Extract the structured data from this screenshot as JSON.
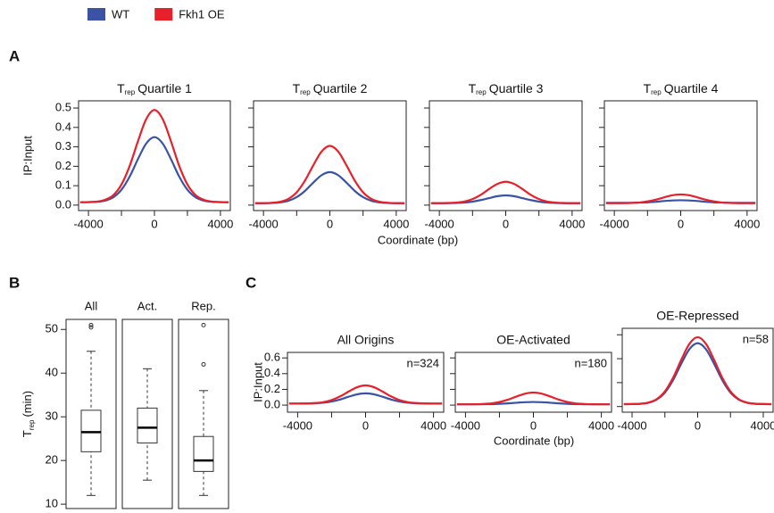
{
  "panel_labels": [
    "A",
    "B",
    "C"
  ],
  "chart_data": [
    {
      "type": "line",
      "title": "T",
      "title_sub": "rep",
      "title_rest": "Quartile 1",
      "ylabel": "IP:Input",
      "x": [
        -4500,
        -4000,
        -3500,
        -3000,
        -2500,
        -2000,
        -1500,
        -1000,
        -500,
        0,
        500,
        1000,
        1500,
        2000,
        2500,
        3000,
        3500,
        4000,
        4500
      ],
      "xlim": [
        -4600,
        4600
      ],
      "xticks": [
        -4000,
        0,
        4000
      ],
      "xminorticks": [
        -2000,
        2000
      ],
      "ylim": [
        -0.028,
        0.537
      ],
      "yticks": [
        {
          "value": 0,
          "label": "0.0"
        },
        0.1,
        0.2,
        0.3,
        0.4,
        0.5
      ],
      "series": [
        {
          "name": "WT",
          "color": "#3a53a4",
          "values": [
            0.015,
            0.015,
            0.017,
            0.023,
            0.04,
            0.079,
            0.147,
            0.237,
            0.317,
            0.35,
            0.317,
            0.237,
            0.147,
            0.079,
            0.04,
            0.023,
            0.017,
            0.015,
            0.015
          ]
        },
        {
          "name": "Fkh1 OE",
          "color": "#e8202a",
          "values": [
            0.015,
            0.016,
            0.018,
            0.027,
            0.051,
            0.106,
            0.202,
            0.329,
            0.443,
            0.49,
            0.443,
            0.329,
            0.202,
            0.106,
            0.051,
            0.027,
            0.018,
            0.016,
            0.015
          ]
        }
      ]
    },
    {
      "type": "line",
      "title": "T",
      "title_sub": "rep",
      "title_rest": "Quartile 2",
      "xlabel": "Coordinate (bp)",
      "x": [
        -4500,
        -4000,
        -3500,
        -3000,
        -2500,
        -2000,
        -1500,
        -1000,
        -500,
        0,
        500,
        1000,
        1500,
        2000,
        2500,
        3000,
        3500,
        4000,
        4500
      ],
      "xlim": [
        -4600,
        4600
      ],
      "xticks": [
        -4000,
        0,
        4000
      ],
      "xminorticks": [
        -2000,
        2000
      ],
      "ylim": [
        -0.028,
        0.537
      ],
      "yticks": [
        0,
        0.1,
        0.2,
        0.3,
        0.4,
        0.5
      ],
      "ytick_labels": false,
      "series": [
        {
          "name": "WT",
          "color": "#3a53a4",
          "values": [
            0.01,
            0.01,
            0.011,
            0.014,
            0.022,
            0.041,
            0.073,
            0.116,
            0.154,
            0.17,
            0.154,
            0.116,
            0.073,
            0.041,
            0.022,
            0.014,
            0.011,
            0.01,
            0.01
          ]
        },
        {
          "name": "Fkh1 OE",
          "color": "#e8202a",
          "values": [
            0.01,
            0.01,
            0.012,
            0.017,
            0.032,
            0.066,
            0.126,
            0.205,
            0.276,
            0.305,
            0.276,
            0.205,
            0.126,
            0.066,
            0.032,
            0.017,
            0.012,
            0.01,
            0.01
          ]
        }
      ]
    },
    {
      "type": "line",
      "title": "T",
      "title_sub": "rep",
      "title_rest": "Quartile 3",
      "x": [
        -4500,
        -4000,
        -3500,
        -3000,
        -2500,
        -2000,
        -1500,
        -1000,
        -500,
        0,
        500,
        1000,
        1500,
        2000,
        2500,
        3000,
        3500,
        4000,
        4500
      ],
      "xlim": [
        -4600,
        4600
      ],
      "xticks": [
        -4000,
        0,
        4000
      ],
      "xminorticks": [
        -2000,
        2000
      ],
      "ylim": [
        -0.028,
        0.537
      ],
      "yticks": [
        0,
        0.1,
        0.2,
        0.3,
        0.4,
        0.5
      ],
      "ytick_labels": false,
      "series": [
        {
          "name": "WT",
          "color": "#3a53a4",
          "values": [
            0.01,
            0.01,
            0.01,
            0.011,
            0.013,
            0.018,
            0.026,
            0.036,
            0.046,
            0.05,
            0.046,
            0.036,
            0.026,
            0.018,
            0.013,
            0.011,
            0.01,
            0.01,
            0.01
          ]
        },
        {
          "name": "Fkh1 OE",
          "color": "#e8202a",
          "values": [
            0.01,
            0.01,
            0.011,
            0.013,
            0.018,
            0.031,
            0.053,
            0.083,
            0.109,
            0.12,
            0.109,
            0.083,
            0.053,
            0.031,
            0.018,
            0.013,
            0.011,
            0.01,
            0.01
          ]
        }
      ]
    },
    {
      "type": "line",
      "title": "T",
      "title_sub": "rep",
      "title_rest": "Quartile 4",
      "x": [
        -4500,
        -4000,
        -3500,
        -3000,
        -2500,
        -2000,
        -1500,
        -1000,
        -500,
        0,
        500,
        1000,
        1500,
        2000,
        2500,
        3000,
        3500,
        4000,
        4500
      ],
      "xlim": [
        -4600,
        4600
      ],
      "xticks": [
        -4000,
        0,
        4000
      ],
      "xminorticks": [
        -2000,
        2000
      ],
      "ylim": [
        -0.028,
        0.537
      ],
      "yticks": [
        0,
        0.1,
        0.2,
        0.3,
        0.4,
        0.5
      ],
      "ytick_labels": false,
      "series": [
        {
          "name": "WT",
          "color": "#3a53a4",
          "values": [
            0.012,
            0.012,
            0.012,
            0.012,
            0.013,
            0.014,
            0.017,
            0.021,
            0.024,
            0.025,
            0.024,
            0.021,
            0.017,
            0.014,
            0.013,
            0.012,
            0.012,
            0.012,
            0.012
          ]
        },
        {
          "name": "Fkh1 OE",
          "color": "#e8202a",
          "values": [
            0.01,
            0.01,
            0.01,
            0.011,
            0.013,
            0.019,
            0.028,
            0.04,
            0.051,
            0.055,
            0.051,
            0.04,
            0.028,
            0.019,
            0.013,
            0.011,
            0.01,
            0.01,
            0.01
          ]
        }
      ]
    },
    {
      "type": "box",
      "ylabel": "T",
      "ylabel_sub": "rep",
      "ylabel_rest": "(min)",
      "categories": [
        "All",
        "Act.",
        "Rep."
      ],
      "ylim": [
        9,
        52.3
      ],
      "yticks": [
        10,
        20,
        30,
        40,
        50
      ],
      "boxes": [
        {
          "whislo": 12,
          "q1": 22,
          "med": 26.5,
          "q3": 31.5,
          "whishi": 45,
          "fliers": [
            50.5,
            51
          ]
        },
        {
          "whislo": 15.5,
          "q1": 24,
          "med": 27.5,
          "q3": 32,
          "whishi": 41,
          "fliers": []
        },
        {
          "whislo": 12,
          "q1": 17.5,
          "med": 20,
          "q3": 25.5,
          "whishi": 36,
          "fliers": [
            42,
            51
          ]
        }
      ]
    },
    {
      "type": "line",
      "title": "All Origins",
      "annotation": "n=324",
      "ylabel": "IP:Input",
      "x": [
        -4500,
        -4000,
        -3500,
        -3000,
        -2500,
        -2000,
        -1500,
        -1000,
        -500,
        0,
        500,
        1000,
        1500,
        2000,
        2500,
        3000,
        3500,
        4000,
        4500
      ],
      "xlim": [
        -4600,
        4600
      ],
      "xticks": [
        -4000,
        0,
        4000
      ],
      "xminorticks": [
        -2000,
        2000
      ],
      "ylim": [
        -0.09,
        0.67
      ],
      "yticks": [
        {
          "value": 0,
          "label": "0.0"
        },
        0.2,
        0.4,
        0.6
      ],
      "series": [
        {
          "name": "WT",
          "color": "#3a53a4",
          "values": [
            0.02,
            0.02,
            0.021,
            0.023,
            0.03,
            0.045,
            0.071,
            0.106,
            0.137,
            0.15,
            0.137,
            0.106,
            0.071,
            0.045,
            0.03,
            0.023,
            0.021,
            0.02,
            0.02
          ]
        },
        {
          "name": "Fkh1 OE",
          "color": "#e8202a",
          "values": [
            0.02,
            0.02,
            0.021,
            0.026,
            0.037,
            0.064,
            0.111,
            0.172,
            0.227,
            0.25,
            0.227,
            0.172,
            0.111,
            0.064,
            0.037,
            0.026,
            0.021,
            0.02,
            0.02
          ]
        }
      ]
    },
    {
      "type": "line",
      "title": "OE-Activated",
      "annotation": "n=180",
      "xlabel": "Coordinate (bp)",
      "x": [
        -4500,
        -4000,
        -3500,
        -3000,
        -2500,
        -2000,
        -1500,
        -1000,
        -500,
        0,
        500,
        1000,
        1500,
        2000,
        2500,
        3000,
        3500,
        4000,
        4500
      ],
      "xlim": [
        -4600,
        4600
      ],
      "xticks": [
        -4000,
        0,
        4000
      ],
      "xminorticks": [
        -2000,
        2000
      ],
      "ylim": [
        -0.09,
        0.67
      ],
      "yticks": [
        0,
        0.2,
        0.4,
        0.6
      ],
      "ytick_labels": false,
      "series": [
        {
          "name": "WT",
          "color": "#3a53a4",
          "values": [
            0.01,
            0.01,
            0.01,
            0.011,
            0.012,
            0.016,
            0.022,
            0.03,
            0.037,
            0.04,
            0.037,
            0.03,
            0.022,
            0.016,
            0.012,
            0.011,
            0.01,
            0.01,
            0.01
          ]
        },
        {
          "name": "Fkh1 OE",
          "color": "#e8202a",
          "values": [
            0.01,
            0.01,
            0.011,
            0.014,
            0.021,
            0.039,
            0.069,
            0.109,
            0.145,
            0.16,
            0.145,
            0.109,
            0.069,
            0.039,
            0.021,
            0.014,
            0.011,
            0.01,
            0.01
          ]
        }
      ]
    },
    {
      "type": "line",
      "title": "OE-Repressed",
      "annotation": "n=58",
      "x": [
        -4500,
        -4000,
        -3500,
        -3000,
        -2500,
        -2000,
        -1500,
        -1000,
        -500,
        0,
        500,
        1000,
        1500,
        2000,
        2500,
        3000,
        3500,
        4000,
        4500
      ],
      "xlim": [
        -4600,
        4600
      ],
      "xticks": [
        -4000,
        0,
        4000
      ],
      "xminorticks": [
        -2000,
        2000
      ],
      "ylim": [
        -0.047,
        0.654
      ],
      "yticks": [
        0,
        0.2,
        0.4,
        0.6
      ],
      "ytick_labels": false,
      "series": [
        {
          "name": "WT",
          "color": "#3a53a4",
          "values": [
            0.02,
            0.021,
            0.023,
            0.032,
            0.059,
            0.117,
            0.221,
            0.358,
            0.48,
            0.53,
            0.48,
            0.358,
            0.221,
            0.117,
            0.059,
            0.032,
            0.023,
            0.021,
            0.02
          ]
        },
        {
          "name": "Fkh1 OE",
          "color": "#e8202a",
          "values": [
            0.02,
            0.021,
            0.024,
            0.034,
            0.062,
            0.127,
            0.241,
            0.391,
            0.525,
            0.58,
            0.525,
            0.391,
            0.241,
            0.127,
            0.062,
            0.034,
            0.024,
            0.021,
            0.02
          ]
        }
      ]
    }
  ]
}
